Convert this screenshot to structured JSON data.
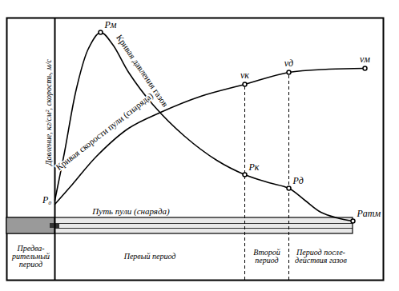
{
  "chart_data": {
    "type": "line",
    "y_label": "Давление, кг/см², скорость, м/с",
    "xlim": [
      -60,
      410
    ],
    "ylim": [
      -78,
      250
    ],
    "tick_labels": false,
    "grid": false,
    "series": [
      {
        "name": "Кривая давления газов",
        "color": "#000000",
        "x": [
          0,
          12,
          27,
          42,
          57,
          72,
          92,
          122,
          162,
          202,
          237,
          267,
          292,
          312,
          332,
          352,
          372
        ],
        "values": [
          22,
          82,
          162,
          212,
          232,
          217,
          182,
          142,
          102,
          72,
          54,
          44,
          37,
          22,
          7,
          0,
          -4
        ],
        "point_labels": [
          "P₀",
          null,
          null,
          null,
          "Pм",
          null,
          null,
          null,
          null,
          null,
          "Pк",
          null,
          "Pд",
          null,
          null,
          null,
          "Pатм"
        ]
      },
      {
        "name": "Кривая скорости пули (снаряда)",
        "color": "#000000",
        "x": [
          0,
          22,
          52,
          92,
          132,
          182,
          237,
          292,
          342,
          387
        ],
        "values": [
          17,
          42,
          77,
          112,
          132,
          152,
          167,
          182,
          186,
          187
        ],
        "point_labels": [
          null,
          null,
          null,
          null,
          null,
          null,
          "vк",
          "vд",
          null,
          "vм"
        ]
      }
    ],
    "path_label": "Путь пули (снаряда)",
    "periods": [
      {
        "label": "Предва-\nрительный\nпериод",
        "x0": -60,
        "x1": 0
      },
      {
        "label": "Первый период",
        "x0": 0,
        "x1": 237
      },
      {
        "label": "Второй\nпериод",
        "x0": 237,
        "x1": 292
      },
      {
        "label": "Период после-\nдействия газов",
        "x0": 292,
        "x1": 372
      }
    ]
  }
}
